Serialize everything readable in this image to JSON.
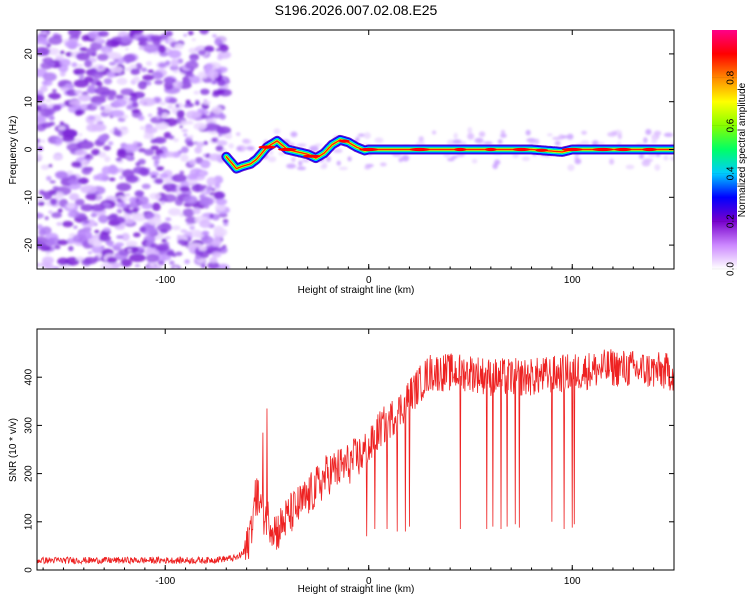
{
  "title": "S196.2026.007.02.08.E25",
  "chart_data": [
    {
      "type": "heatmap",
      "title": "S196.2026.007.02.08.E25",
      "xlabel": "Height of straight line (km)",
      "ylabel": "Frequency (Hz)",
      "xlim": [
        -163,
        150
      ],
      "ylim": [
        -25,
        25
      ],
      "xticks": [
        -100,
        0,
        100
      ],
      "yticks": [
        -20,
        -10,
        0,
        10,
        20
      ],
      "noise_region_x": [
        -163,
        -70
      ],
      "signal_track": {
        "x": [
          -70,
          -65,
          -62,
          -58,
          -55,
          -50,
          -45,
          -40,
          -35,
          -30,
          -26,
          -22,
          -18,
          -14,
          -10,
          -6,
          -2,
          0,
          10,
          20,
          40,
          60,
          80,
          95,
          100,
          110,
          150
        ],
        "freq": [
          -1.5,
          -4,
          -3.5,
          -3,
          -2,
          0.5,
          1.8,
          0,
          -0.5,
          -1,
          -1.8,
          -0.8,
          1,
          2,
          1.5,
          0.5,
          -0.2,
          0,
          0,
          0,
          0,
          0,
          0,
          -0.5,
          0,
          0,
          0
        ]
      },
      "colorbar": {
        "label": "Normalized spectral amplitude",
        "range": [
          0,
          1
        ],
        "ticks": [
          "0.0",
          "0.2",
          "0.4",
          "0.6",
          "0.8"
        ],
        "colors": [
          "#ffffff",
          "#cc88ff",
          "#7700cc",
          "#0000ff",
          "#00ccff",
          "#00ff66",
          "#88ff00",
          "#ffff00",
          "#ff8800",
          "#ff0000",
          "#ff0088"
        ]
      }
    },
    {
      "type": "line",
      "xlabel": "Height of straight line (km)",
      "ylabel": "SNR (10 * v/v)",
      "xlim": [
        -163,
        150
      ],
      "ylim": [
        0,
        500
      ],
      "xticks": [
        -100,
        0,
        100
      ],
      "yticks": [
        0,
        100,
        200,
        300,
        400
      ],
      "series": [
        {
          "name": "SNR",
          "color": "#ee2222",
          "anchors_x": [
            -163,
            -120,
            -80,
            -65,
            -60,
            -55,
            -52,
            -50,
            -45,
            -40,
            -30,
            -20,
            -10,
            0,
            5,
            10,
            15,
            20,
            30,
            50,
            60,
            80,
            100,
            120,
            150
          ],
          "anchors_y": [
            20,
            20,
            20,
            25,
            40,
            160,
            120,
            110,
            80,
            110,
            150,
            200,
            220,
            250,
            290,
            310,
            330,
            360,
            410,
            410,
            400,
            400,
            410,
            420,
            410
          ],
          "dropouts": [
            [
              -1,
              70
            ],
            [
              3,
              85
            ],
            [
              9,
              85
            ],
            [
              14,
              80
            ],
            [
              18,
              80
            ],
            [
              20,
              90
            ],
            [
              45,
              85
            ],
            [
              58,
              85
            ],
            [
              61,
              90
            ],
            [
              65,
              85
            ],
            [
              68,
              90
            ],
            [
              72,
              95
            ],
            [
              74,
              88
            ],
            [
              90,
              100
            ],
            [
              96,
              85
            ],
            [
              100,
              88
            ],
            [
              101,
              95
            ]
          ],
          "spikes": [
            [
              -50,
              335
            ],
            [
              -52,
              285
            ],
            [
              -55,
              190
            ]
          ]
        }
      ]
    }
  ]
}
